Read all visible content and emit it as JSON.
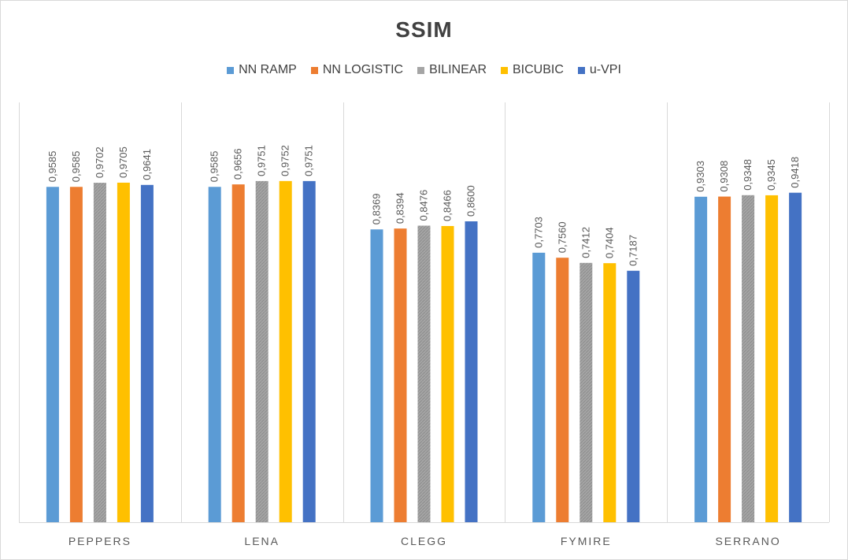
{
  "chart_data": {
    "type": "bar",
    "title": "SSIM",
    "categories": [
      "PEPPERS",
      "LENA",
      "CLEGG",
      "FYMIRE",
      "SERRANO"
    ],
    "series": [
      {
        "name": "NN RAMP",
        "color": "#5b9bd5",
        "values": [
          0.9585,
          0.9585,
          0.8369,
          0.7703,
          0.9303
        ],
        "labels": [
          "0,9585",
          "0,9585",
          "0,8369",
          "0,7703",
          "0,9303"
        ]
      },
      {
        "name": "NN LOGISTIC",
        "color": "#ed7d31",
        "values": [
          0.9585,
          0.9656,
          0.8394,
          0.756,
          0.9308
        ],
        "labels": [
          "0,9585",
          "0,9656",
          "0,8394",
          "0,7560",
          "0,9308"
        ]
      },
      {
        "name": "BILINEAR",
        "color": "#a5a5a5",
        "pattern": true,
        "values": [
          0.9702,
          0.9751,
          0.8476,
          0.7412,
          0.9348
        ],
        "labels": [
          "0,9702",
          "0,9751",
          "0,8476",
          "0,7412",
          "0,9348"
        ]
      },
      {
        "name": "BICUBIC",
        "color": "#ffc000",
        "values": [
          0.9705,
          0.9752,
          0.8466,
          0.7404,
          0.9345
        ],
        "labels": [
          "0,9705",
          "0,9752",
          "0,8466",
          "0,7404",
          "0,9345"
        ]
      },
      {
        "name": "u-VPI",
        "color": "#4472c4",
        "values": [
          0.9641,
          0.9751,
          0.86,
          0.7187,
          0.9418
        ],
        "labels": [
          "0,9641",
          "0,9751",
          "0,8600",
          "0,7187",
          "0,9418"
        ]
      }
    ],
    "ylim": [
      0,
      1.2
    ],
    "grid": false,
    "legend_position": "top"
  }
}
